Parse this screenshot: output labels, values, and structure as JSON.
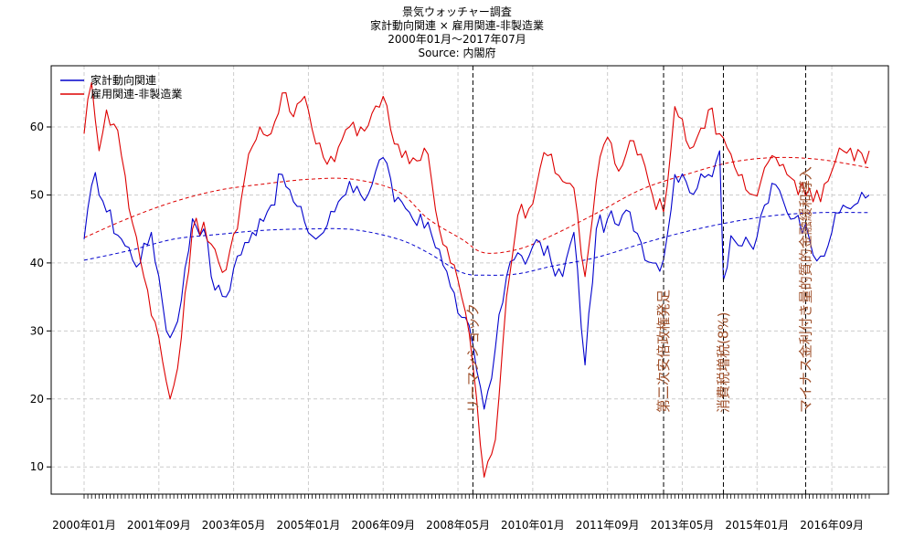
{
  "title_lines": {
    "title": "景気ウォッチャー調査",
    "subtitle": "家計動向関連 × 雇用関連-非製造業",
    "period": "2000年01月～2017年07月",
    "source": "Source: 内閣府"
  },
  "colors": {
    "series1": "#0000cc",
    "series2": "#dd0000",
    "event_label": "#a0522d",
    "grid": "#cccccc"
  },
  "chart_data": {
    "type": "line",
    "x_start": "2000-01",
    "x_end": "2017-07",
    "frequency": "monthly",
    "ylim": [
      6,
      69
    ],
    "yticks": [
      10,
      20,
      30,
      40,
      50,
      60
    ],
    "xtick_labels": [
      "2000年01月",
      "2001年09月",
      "2003年05月",
      "2005年01月",
      "2006年09月",
      "2008年05月",
      "2010年01月",
      "2011年09月",
      "2013年05月",
      "2015年01月",
      "2016年09月"
    ],
    "grid": true,
    "legend_position": "top-left",
    "series": [
      {
        "name": "家計動向関連",
        "keypoints": [
          [
            "2000-01",
            43.5
          ],
          [
            "2000-04",
            53.3
          ],
          [
            "2000-07",
            47.5
          ],
          [
            "2000-12",
            42.5
          ],
          [
            "2001-04",
            40.0
          ],
          [
            "2001-07",
            44.5
          ],
          [
            "2001-09",
            38.0
          ],
          [
            "2001-11",
            30.0
          ],
          [
            "2001-12",
            29.0
          ],
          [
            "2002-03",
            34.5
          ],
          [
            "2002-06",
            46.5
          ],
          [
            "2002-09",
            45.0
          ],
          [
            "2002-12",
            36.0
          ],
          [
            "2003-03",
            35.0
          ],
          [
            "2003-06",
            41.0
          ],
          [
            "2003-09",
            43.0
          ],
          [
            "2003-12",
            46.5
          ],
          [
            "2004-03",
            48.5
          ],
          [
            "2004-06",
            53.0
          ],
          [
            "2004-09",
            49.0
          ],
          [
            "2004-12",
            46.0
          ],
          [
            "2005-03",
            43.5
          ],
          [
            "2005-06",
            45.5
          ],
          [
            "2005-09",
            49.0
          ],
          [
            "2005-12",
            52.0
          ],
          [
            "2006-03",
            50.0
          ],
          [
            "2006-06",
            51.5
          ],
          [
            "2006-09",
            55.5
          ],
          [
            "2006-12",
            49.0
          ],
          [
            "2007-03",
            48.0
          ],
          [
            "2007-06",
            45.5
          ],
          [
            "2007-09",
            46.0
          ],
          [
            "2007-12",
            42.0
          ],
          [
            "2008-03",
            36.5
          ],
          [
            "2008-06",
            32.0
          ],
          [
            "2008-09",
            28.0
          ],
          [
            "2008-12",
            18.5
          ],
          [
            "2009-03",
            27.5
          ],
          [
            "2009-06",
            38.0
          ],
          [
            "2009-09",
            41.5
          ],
          [
            "2009-12",
            41.0
          ],
          [
            "2010-03",
            43.0
          ],
          [
            "2010-06",
            40.0
          ],
          [
            "2010-09",
            38.0
          ],
          [
            "2010-12",
            44.5
          ],
          [
            "2011-03",
            25.0
          ],
          [
            "2011-06",
            45.0
          ],
          [
            "2011-09",
            46.5
          ],
          [
            "2011-12",
            45.5
          ],
          [
            "2012-03",
            47.5
          ],
          [
            "2012-06",
            43.0
          ],
          [
            "2012-09",
            40.0
          ],
          [
            "2012-12",
            40.5
          ],
          [
            "2013-03",
            53.0
          ],
          [
            "2013-06",
            52.0
          ],
          [
            "2013-09",
            51.0
          ],
          [
            "2013-12",
            53.0
          ],
          [
            "2014-03",
            56.5
          ],
          [
            "2014-04",
            37.5
          ],
          [
            "2014-06",
            44.0
          ],
          [
            "2014-09",
            42.5
          ],
          [
            "2014-12",
            42.0
          ],
          [
            "2015-03",
            48.5
          ],
          [
            "2015-06",
            51.5
          ],
          [
            "2015-09",
            47.5
          ],
          [
            "2015-12",
            47.0
          ],
          [
            "2016-03",
            43.5
          ],
          [
            "2016-06",
            41.0
          ],
          [
            "2016-09",
            44.5
          ],
          [
            "2016-12",
            48.5
          ],
          [
            "2017-03",
            48.5
          ],
          [
            "2017-07",
            50.0
          ]
        ]
      },
      {
        "name": "雇用関連-非製造業",
        "keypoints": [
          [
            "2000-01",
            59.0
          ],
          [
            "2000-03",
            66.5
          ],
          [
            "2000-05",
            56.5
          ],
          [
            "2000-07",
            62.5
          ],
          [
            "2000-10",
            59.5
          ],
          [
            "2001-01",
            48.0
          ],
          [
            "2001-04",
            40.5
          ],
          [
            "2001-06",
            36.0
          ],
          [
            "2001-09",
            29.0
          ],
          [
            "2001-12",
            20.0
          ],
          [
            "2002-03",
            29.0
          ],
          [
            "2002-06",
            45.0
          ],
          [
            "2002-09",
            46.0
          ],
          [
            "2002-12",
            42.0
          ],
          [
            "2003-03",
            39.0
          ],
          [
            "2003-06",
            45.0
          ],
          [
            "2003-09",
            56.0
          ],
          [
            "2003-12",
            60.0
          ],
          [
            "2004-03",
            59.0
          ],
          [
            "2004-06",
            65.0
          ],
          [
            "2004-09",
            61.5
          ],
          [
            "2004-12",
            64.5
          ],
          [
            "2005-03",
            57.5
          ],
          [
            "2005-06",
            54.5
          ],
          [
            "2005-09",
            57.0
          ],
          [
            "2005-12",
            60.0
          ],
          [
            "2006-03",
            60.0
          ],
          [
            "2006-06",
            62.0
          ],
          [
            "2006-09",
            64.5
          ],
          [
            "2006-12",
            57.5
          ],
          [
            "2007-03",
            56.5
          ],
          [
            "2007-06",
            55.0
          ],
          [
            "2007-09",
            56.0
          ],
          [
            "2007-12",
            45.0
          ],
          [
            "2008-03",
            40.0
          ],
          [
            "2008-06",
            35.0
          ],
          [
            "2008-09",
            25.0
          ],
          [
            "2008-12",
            8.5
          ],
          [
            "2009-03",
            14.0
          ],
          [
            "2009-06",
            35.0
          ],
          [
            "2009-09",
            47.0
          ],
          [
            "2009-12",
            48.0
          ],
          [
            "2010-03",
            54.0
          ],
          [
            "2010-06",
            56.0
          ],
          [
            "2010-09",
            52.0
          ],
          [
            "2010-12",
            51.0
          ],
          [
            "2011-03",
            38.0
          ],
          [
            "2011-06",
            52.0
          ],
          [
            "2011-09",
            58.5
          ],
          [
            "2011-12",
            53.5
          ],
          [
            "2012-03",
            58.0
          ],
          [
            "2012-06",
            56.0
          ],
          [
            "2012-09",
            50.0
          ],
          [
            "2012-12",
            47.5
          ],
          [
            "2013-03",
            63.0
          ],
          [
            "2013-06",
            58.0
          ],
          [
            "2013-09",
            58.5
          ],
          [
            "2013-12",
            62.5
          ],
          [
            "2014-03",
            59.0
          ],
          [
            "2014-06",
            56.0
          ],
          [
            "2014-09",
            53.0
          ],
          [
            "2014-12",
            50.0
          ],
          [
            "2015-03",
            54.0
          ],
          [
            "2015-06",
            55.5
          ],
          [
            "2015-09",
            53.0
          ],
          [
            "2015-12",
            50.0
          ],
          [
            "2016-03",
            51.0
          ],
          [
            "2016-06",
            49.0
          ],
          [
            "2016-09",
            53.5
          ],
          [
            "2016-12",
            56.5
          ],
          [
            "2017-03",
            55.0
          ],
          [
            "2017-07",
            56.5
          ]
        ]
      }
    ],
    "trend_series": [
      {
        "of": "家計動向関連",
        "keypoints": [
          [
            "2000-01",
            40.4
          ],
          [
            "2001-01",
            41.8
          ],
          [
            "2002-01",
            43.5
          ],
          [
            "2003-01",
            44.2
          ],
          [
            "2004-01",
            44.8
          ],
          [
            "2005-01",
            45.0
          ],
          [
            "2006-01",
            44.9
          ],
          [
            "2007-01",
            43.5
          ],
          [
            "2007-09",
            41.5
          ],
          [
            "2008-06",
            38.6
          ],
          [
            "2009-01",
            38.2
          ],
          [
            "2009-09",
            38.4
          ],
          [
            "2010-06",
            39.5
          ],
          [
            "2011-06",
            40.8
          ],
          [
            "2012-06",
            42.8
          ],
          [
            "2013-06",
            44.6
          ],
          [
            "2014-06",
            46.0
          ],
          [
            "2015-06",
            47.0
          ],
          [
            "2016-06",
            47.4
          ],
          [
            "2017-07",
            47.4
          ]
        ]
      },
      {
        "of": "雇用関連-非製造業",
        "keypoints": [
          [
            "2000-01",
            43.7
          ],
          [
            "2001-01",
            46.6
          ],
          [
            "2002-01",
            49.0
          ],
          [
            "2003-01",
            50.7
          ],
          [
            "2004-01",
            51.6
          ],
          [
            "2005-01",
            52.3
          ],
          [
            "2006-01",
            52.3
          ],
          [
            "2007-01",
            50.5
          ],
          [
            "2007-09",
            46.5
          ],
          [
            "2008-06",
            43.5
          ],
          [
            "2008-12",
            41.5
          ],
          [
            "2009-09",
            42.0
          ],
          [
            "2010-06",
            44.0
          ],
          [
            "2011-06",
            47.3
          ],
          [
            "2012-06",
            50.8
          ],
          [
            "2013-06",
            53.0
          ],
          [
            "2014-06",
            54.8
          ],
          [
            "2015-06",
            55.5
          ],
          [
            "2016-06",
            55.2
          ],
          [
            "2017-07",
            54.0
          ]
        ]
      }
    ],
    "events": [
      {
        "date": "2008-09",
        "label": "リーマンショック"
      },
      {
        "date": "2012-12",
        "label": "第二次安倍政権発足"
      },
      {
        "date": "2014-04",
        "label": "消費税増税(8%)"
      },
      {
        "date": "2016-02",
        "label": "マイナス金利付き量的質的金融緩和導入"
      }
    ]
  }
}
